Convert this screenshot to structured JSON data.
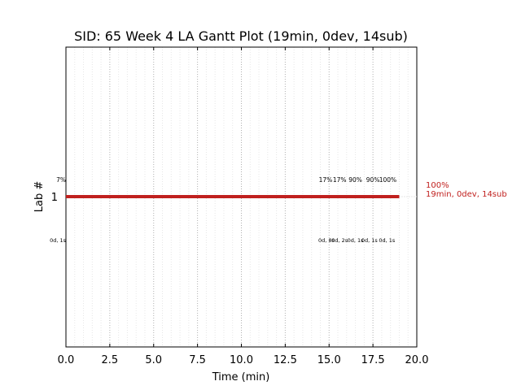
{
  "chart_data": {
    "type": "gantt",
    "title": "SID: 65 Week 4 LA Gantt Plot (19min, 0dev, 14sub)",
    "xlabel": "Time (min)",
    "ylabel": "Lab #",
    "xlim": [
      0,
      20
    ],
    "x_ticks": [
      "0.0",
      "2.5",
      "5.0",
      "7.5",
      "10.0",
      "12.5",
      "15.0",
      "17.5",
      "20.0"
    ],
    "x_tick_values": [
      0,
      2.5,
      5,
      7.5,
      10,
      12.5,
      15,
      17.5,
      20
    ],
    "y_ticks": [
      "1"
    ],
    "grid": "vertical-dotted",
    "bars": [
      {
        "lab": 1,
        "start": 0,
        "end": 19,
        "color": "#c0201e",
        "end_label_pct": "100%",
        "end_label_stats": "19min, 0dev, 14sub"
      }
    ],
    "annotations_above": [
      {
        "x": 0,
        "text": "7%"
      },
      {
        "x": 14.8,
        "text": "17%"
      },
      {
        "x": 15.6,
        "text": "17%"
      },
      {
        "x": 16.5,
        "text": "90%"
      },
      {
        "x": 17.5,
        "text": "90%"
      },
      {
        "x": 18.35,
        "text": "100%"
      }
    ],
    "annotations_below": [
      {
        "x": 0,
        "text": "0d, 1s"
      },
      {
        "x": 14.85,
        "text": "0d, 8s"
      },
      {
        "x": 15.6,
        "text": "0d, 2s"
      },
      {
        "x": 16.5,
        "text": "0d, 1s"
      },
      {
        "x": 17.3,
        "text": "0d, 1s"
      },
      {
        "x": 18.3,
        "text": "0d, 1s"
      }
    ]
  }
}
